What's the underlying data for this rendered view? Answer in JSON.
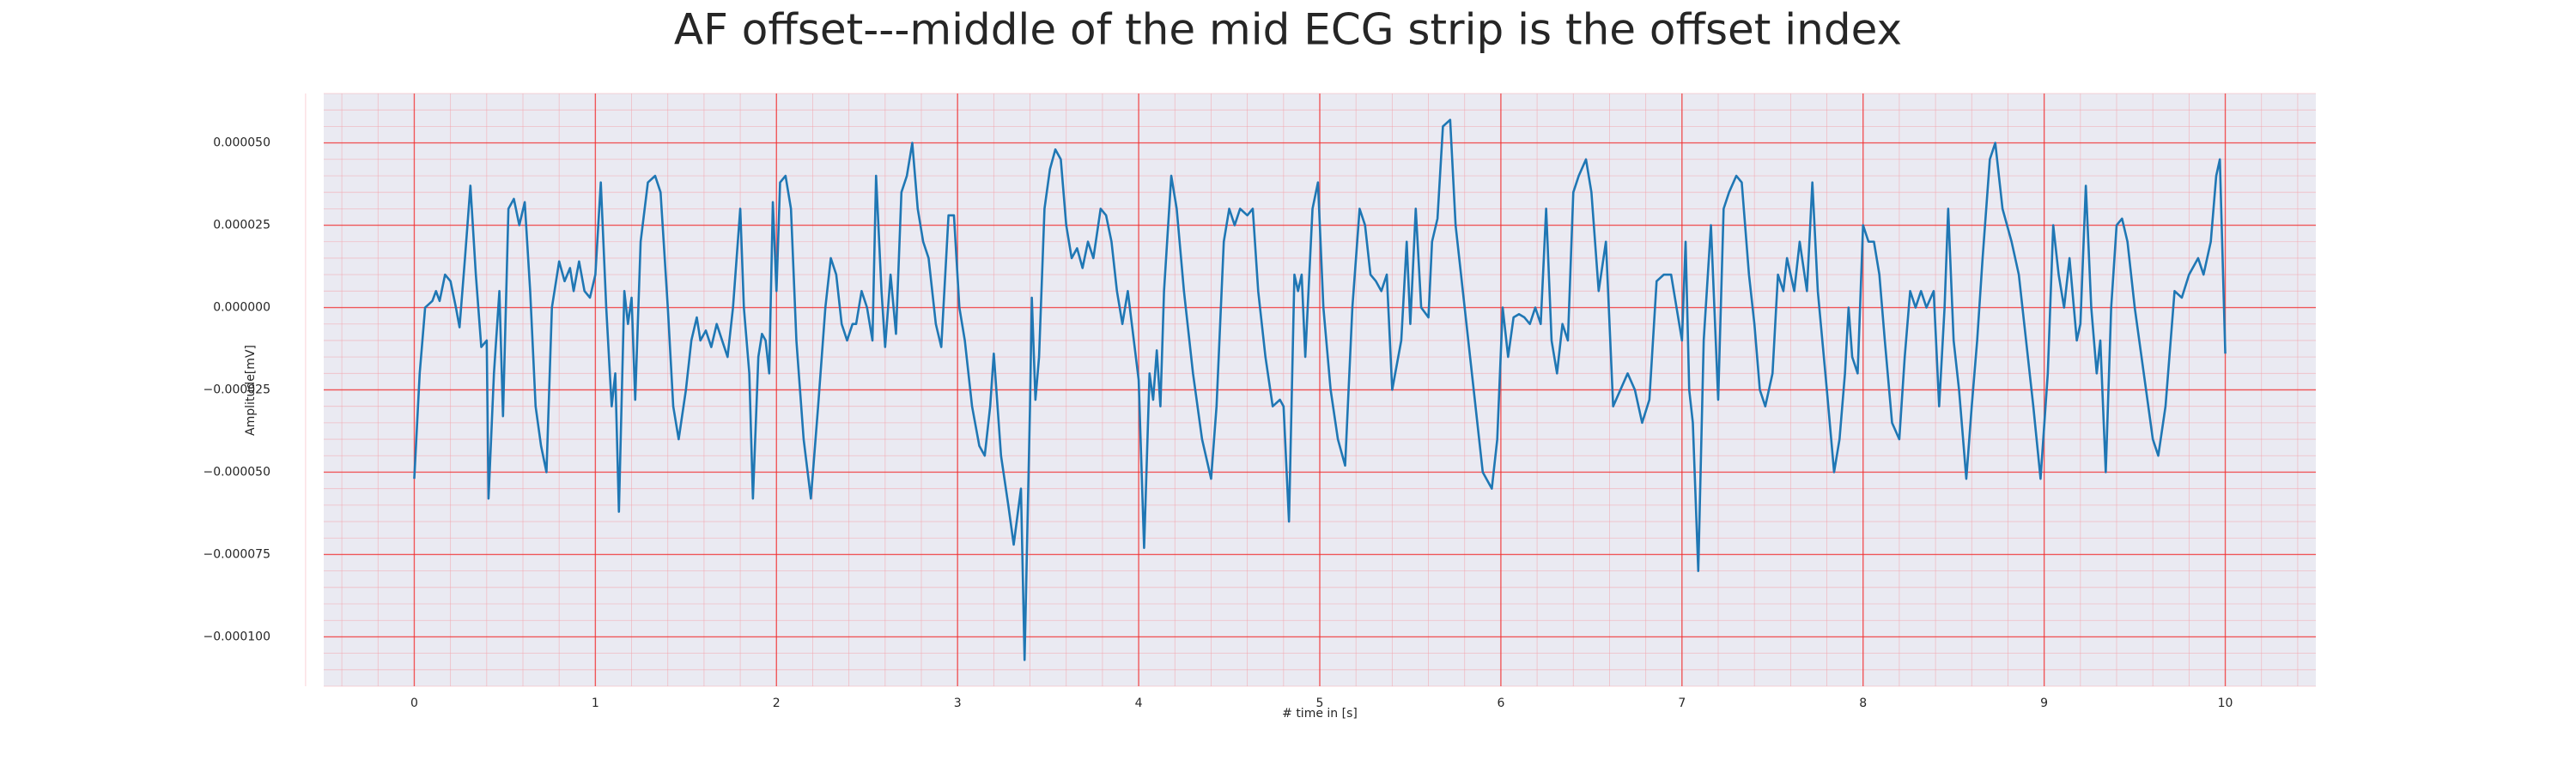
{
  "chart_data": {
    "type": "line",
    "title": "AF offset---middle of the mid ECG strip is the offset index",
    "xlabel": "# time in [s]",
    "ylabel": "Amplitude[mV]",
    "color": "#1f77b4",
    "grid": true,
    "minor_grid": true,
    "xlim": [
      -0.5,
      10.5
    ],
    "ylim": [
      -0.000115,
      6.5e-05
    ],
    "xticks": [
      0,
      1,
      2,
      3,
      4,
      5,
      6,
      7,
      8,
      9,
      10
    ],
    "yticks": [
      {
        "value": -0.0001,
        "label": "−0.000100"
      },
      {
        "value": -7.5e-05,
        "label": "−0.000075"
      },
      {
        "value": -5e-05,
        "label": "−0.000050"
      },
      {
        "value": -2.5e-05,
        "label": "−0.000025"
      },
      {
        "value": 0,
        "label": "0.000000"
      },
      {
        "value": 2.5e-05,
        "label": "0.000025"
      },
      {
        "value": 5e-05,
        "label": "0.000050"
      }
    ],
    "x": [
      0,
      0.03,
      0.06,
      0.1,
      0.12,
      0.14,
      0.17,
      0.2,
      0.23,
      0.25,
      0.28,
      0.31,
      0.34,
      0.37,
      0.4,
      0.41,
      0.44,
      0.47,
      0.49,
      0.52,
      0.55,
      0.58,
      0.61,
      0.64,
      0.67,
      0.7,
      0.73,
      0.76,
      0.8,
      0.83,
      0.86,
      0.88,
      0.91,
      0.94,
      0.97,
      1.0,
      1.03,
      1.06,
      1.09,
      1.11,
      1.13,
      1.16,
      1.18,
      1.2,
      1.22,
      1.25,
      1.29,
      1.33,
      1.36,
      1.4,
      1.43,
      1.46,
      1.5,
      1.53,
      1.56,
      1.58,
      1.61,
      1.64,
      1.67,
      1.7,
      1.73,
      1.76,
      1.8,
      1.82,
      1.85,
      1.87,
      1.9,
      1.92,
      1.94,
      1.96,
      1.98,
      2.0,
      2.02,
      2.05,
      2.08,
      2.11,
      2.15,
      2.19,
      2.23,
      2.27,
      2.3,
      2.33,
      2.36,
      2.39,
      2.42,
      2.44,
      2.47,
      2.5,
      2.53,
      2.55,
      2.58,
      2.6,
      2.63,
      2.66,
      2.69,
      2.72,
      2.75,
      2.78,
      2.81,
      2.84,
      2.88,
      2.91,
      2.95,
      2.98,
      3.01,
      3.04,
      3.08,
      3.12,
      3.15,
      3.18,
      3.2,
      3.24,
      3.28,
      3.31,
      3.35,
      3.37,
      3.4,
      3.41,
      3.43,
      3.45,
      3.48,
      3.51,
      3.54,
      3.57,
      3.6,
      3.63,
      3.66,
      3.69,
      3.72,
      3.75,
      3.79,
      3.82,
      3.85,
      3.88,
      3.91,
      3.94,
      4.0,
      4.03,
      4.06,
      4.08,
      4.1,
      4.12,
      4.14,
      4.18,
      4.21,
      4.25,
      4.3,
      4.35,
      4.4,
      4.43,
      4.47,
      4.5,
      4.53,
      4.56,
      4.6,
      4.63,
      4.66,
      4.7,
      4.74,
      4.78,
      4.8,
      4.83,
      4.86,
      4.88,
      4.9,
      4.92,
      4.96,
      4.99,
      5.02,
      5.06,
      5.1,
      5.14,
      5.18,
      5.22,
      5.25,
      5.28,
      5.31,
      5.34,
      5.37,
      5.4,
      5.45,
      5.48,
      5.5,
      5.53,
      5.56,
      5.6,
      5.62,
      5.65,
      5.68,
      5.72,
      5.75,
      5.78,
      5.82,
      5.86,
      5.9,
      5.95,
      5.98,
      6.01,
      6.04,
      6.07,
      6.1,
      6.13,
      6.16,
      6.19,
      6.22,
      6.25,
      6.28,
      6.31,
      6.34,
      6.37,
      6.4,
      6.43,
      6.47,
      6.5,
      6.54,
      6.58,
      6.62,
      6.66,
      6.7,
      6.74,
      6.78,
      6.82,
      6.86,
      6.9,
      6.94,
      6.97,
      7.0,
      7.02,
      7.04,
      7.06,
      7.09,
      7.12,
      7.16,
      7.2,
      7.23,
      7.26,
      7.3,
      7.33,
      7.37,
      7.4,
      7.43,
      7.46,
      7.5,
      7.53,
      7.56,
      7.58,
      7.62,
      7.65,
      7.69,
      7.72,
      7.75,
      7.8,
      7.84,
      7.87,
      7.9,
      7.92,
      7.94,
      7.97,
      8.0,
      8.03,
      8.06,
      8.09,
      8.12,
      8.16,
      8.2,
      8.23,
      8.26,
      8.29,
      8.32,
      8.35,
      8.39,
      8.42,
      8.45,
      8.47,
      8.5,
      8.53,
      8.57,
      8.6,
      8.63,
      8.66,
      8.7,
      8.73,
      8.77,
      8.82,
      8.86,
      8.9,
      8.94,
      8.98,
      9.02,
      9.05,
      9.08,
      9.11,
      9.14,
      9.18,
      9.2,
      9.23,
      9.26,
      9.29,
      9.31,
      9.34,
      9.37,
      9.4,
      9.43,
      9.46,
      9.5,
      9.55,
      9.6,
      9.63,
      9.67,
      9.72,
      9.76,
      9.8,
      9.85,
      9.88,
      9.92,
      9.95,
      9.97,
      10.0
    ],
    "values": [
      -5.2e-05,
      -2e-05,
      0,
      2e-06,
      5e-06,
      2e-06,
      1e-05,
      8e-06,
      0,
      -6e-06,
      1.5e-05,
      3.7e-05,
      1e-05,
      -1.2e-05,
      -1e-05,
      -5.8e-05,
      -2e-05,
      5e-06,
      -3.3e-05,
      3e-05,
      3.3e-05,
      2.5e-05,
      3.2e-05,
      5e-06,
      -3e-05,
      -4.2e-05,
      -5e-05,
      0,
      1.4e-05,
      8e-06,
      1.2e-05,
      5e-06,
      1.4e-05,
      5e-06,
      3e-06,
      1e-05,
      3.8e-05,
      0,
      -3e-05,
      -2e-05,
      -6.2e-05,
      5e-06,
      -5e-06,
      3e-06,
      -2.8e-05,
      2e-05,
      3.8e-05,
      4e-05,
      3.5e-05,
      0,
      -3e-05,
      -4e-05,
      -2.5e-05,
      -1e-05,
      -3e-06,
      -1e-05,
      -7e-06,
      -1.2e-05,
      -5e-06,
      -1e-05,
      -1.5e-05,
      0,
      3e-05,
      0,
      -2e-05,
      -5.8e-05,
      -1.5e-05,
      -8e-06,
      -1e-05,
      -2e-05,
      3.2e-05,
      5e-06,
      3.8e-05,
      4e-05,
      3e-05,
      -1e-05,
      -4e-05,
      -5.8e-05,
      -3e-05,
      0,
      1.5e-05,
      1e-05,
      -5e-06,
      -1e-05,
      -5e-06,
      -5e-06,
      5e-06,
      0,
      -1e-05,
      4e-05,
      5e-06,
      -1.2e-05,
      1e-05,
      -8e-06,
      3.5e-05,
      4e-05,
      5e-05,
      3e-05,
      2e-05,
      1.5e-05,
      -5e-06,
      -1.2e-05,
      2.8e-05,
      2.8e-05,
      0,
      -1e-05,
      -3e-05,
      -4.2e-05,
      -4.5e-05,
      -3e-05,
      -1.4e-05,
      -4.5e-05,
      -6e-05,
      -7.2e-05,
      -5.5e-05,
      -0.000107,
      -3e-05,
      3e-06,
      -2.8e-05,
      -1.5e-05,
      3e-05,
      4.2e-05,
      4.8e-05,
      4.5e-05,
      2.5e-05,
      1.5e-05,
      1.8e-05,
      1.2e-05,
      2e-05,
      1.5e-05,
      3e-05,
      2.8e-05,
      2e-05,
      5e-06,
      -5e-06,
      5e-06,
      -2.2e-05,
      -7.3e-05,
      -2e-05,
      -2.8e-05,
      -1.3e-05,
      -3e-05,
      5e-06,
      4e-05,
      3e-05,
      5e-06,
      -2e-05,
      -4e-05,
      -5.2e-05,
      -3e-05,
      2e-05,
      3e-05,
      2.5e-05,
      3e-05,
      2.8e-05,
      3e-05,
      5e-06,
      -1.5e-05,
      -3e-05,
      -2.8e-05,
      -3e-05,
      -6.5e-05,
      1e-05,
      5e-06,
      1e-05,
      -1.5e-05,
      3e-05,
      3.8e-05,
      0,
      -2.5e-05,
      -4e-05,
      -4.8e-05,
      0,
      3e-05,
      2.5e-05,
      1e-05,
      8e-06,
      5e-06,
      1e-05,
      -2.5e-05,
      -1e-05,
      2e-05,
      -5e-06,
      3e-05,
      0,
      -3e-06,
      2e-05,
      2.7e-05,
      5.5e-05,
      5.7e-05,
      2.5e-05,
      1e-05,
      -1e-05,
      -3e-05,
      -5e-05,
      -5.5e-05,
      -4e-05,
      0,
      -1.5e-05,
      -3e-06,
      -2e-06,
      -3e-06,
      -5e-06,
      0,
      -5e-06,
      3e-05,
      -1e-05,
      -2e-05,
      -5e-06,
      -1e-05,
      3.5e-05,
      4e-05,
      4.5e-05,
      3.5e-05,
      5e-06,
      2e-05,
      -3e-05,
      -2.5e-05,
      -2e-05,
      -2.5e-05,
      -3.5e-05,
      -2.8e-05,
      8e-06,
      1e-05,
      1e-05,
      0,
      -1e-05,
      2e-05,
      -2.5e-05,
      -3.5e-05,
      -8e-05,
      -1e-05,
      2.5e-05,
      -2.8e-05,
      3e-05,
      3.5e-05,
      4e-05,
      3.8e-05,
      1e-05,
      -5e-06,
      -2.5e-05,
      -3e-05,
      -2e-05,
      1e-05,
      5e-06,
      1.5e-05,
      5e-06,
      2e-05,
      5e-06,
      3.8e-05,
      5e-06,
      -2.5e-05,
      -5e-05,
      -4e-05,
      -2e-05,
      0,
      -1.5e-05,
      -2e-05,
      2.5e-05,
      2e-05,
      2e-05,
      1e-05,
      -1e-05,
      -3.5e-05,
      -4e-05,
      -1.5e-05,
      5e-06,
      0,
      5e-06,
      0,
      5e-06,
      -3e-05,
      0,
      3e-05,
      -1e-05,
      -2.5e-05,
      -5.2e-05,
      -3e-05,
      -1e-05,
      1.5e-05,
      4.5e-05,
      5e-05,
      3e-05,
      2e-05,
      1e-05,
      -1e-05,
      -3e-05,
      -5.2e-05,
      -2e-05,
      2.5e-05,
      1e-05,
      0,
      1.5e-05,
      -1e-05,
      -5e-06,
      3.7e-05,
      0,
      -2e-05,
      -1e-05,
      -5e-05,
      0,
      2.5e-05,
      2.7e-05,
      2e-05,
      0,
      -2e-05,
      -4e-05,
      -4.5e-05,
      -3e-05,
      5e-06,
      3e-06,
      1e-05,
      1.5e-05,
      1e-05,
      2e-05,
      4e-05,
      4.5e-05,
      -1.4e-05
    ]
  }
}
